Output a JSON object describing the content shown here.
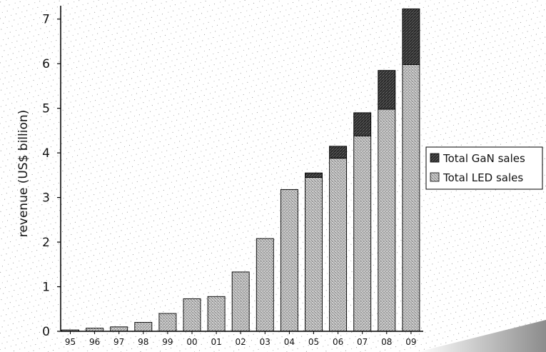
{
  "chart_data": {
    "type": "bar",
    "stacked": true,
    "ylabel": "revenue (US$ billion)",
    "xlabel": "",
    "ylim": [
      0,
      7.3
    ],
    "yticks": [
      0,
      1,
      2,
      3,
      4,
      5,
      6,
      7
    ],
    "grid": false,
    "legend_position": "right",
    "categories": [
      "95",
      "96",
      "97",
      "98",
      "99",
      "00",
      "01",
      "02",
      "03",
      "04",
      "05",
      "06",
      "07",
      "08",
      "09"
    ],
    "series": [
      {
        "name": "Total LED sales",
        "color": "#a9a9a9",
        "pattern": "light-stipple",
        "values": [
          0.03,
          0.07,
          0.1,
          0.2,
          0.4,
          0.73,
          0.78,
          1.33,
          2.08,
          3.18,
          3.45,
          3.88,
          4.38,
          4.98,
          5.98
        ]
      },
      {
        "name": "Total GaN sales",
        "color": "#333333",
        "pattern": "dark-stipple",
        "values": [
          0,
          0,
          0,
          0,
          0,
          0,
          0,
          0,
          0,
          0,
          0.1,
          0.27,
          0.52,
          0.87,
          1.25
        ]
      }
    ]
  }
}
